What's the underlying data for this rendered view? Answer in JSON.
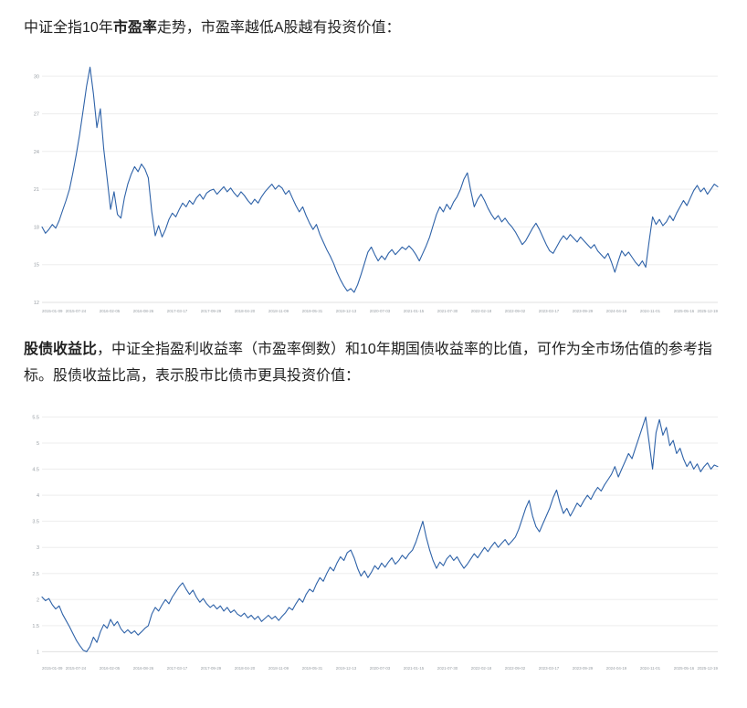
{
  "page": {
    "paragraph1": {
      "pre": "中证全指10年",
      "bold": "市盈率",
      "post": "走势，市盈率越低A股越有投资价值："
    },
    "paragraph2": {
      "bold": "股债收益比",
      "post": "，中证全指盈利收益率（市盈率倒数）和10年期国债收益率的比值，可作为全市场估值的参考指标。股债收益比高，表示股市比债市更具投资价值："
    }
  },
  "chart_data": [
    {
      "type": "line",
      "title": "",
      "series_name": "中证全指10年市盈率",
      "line_color": "#2e62a8",
      "grid": "horizontal",
      "legend_position": "none",
      "ylim": [
        12,
        31.4
      ],
      "yticks": [
        12,
        15,
        18,
        21,
        24,
        27,
        30
      ],
      "x_labels": [
        "2015-01-09",
        "2015-07-24",
        "2016-02-05",
        "2016-08-26",
        "2017-03-17",
        "2017-09-29",
        "2018-04-20",
        "2018-11-09",
        "2019-05-31",
        "2019-12-13",
        "2020-07-03",
        "2021-01-15",
        "2021-07-30",
        "2022-02-18",
        "2022-09-02",
        "2023-03-17",
        "2023-09-29",
        "2024-04-19",
        "2024-11-01",
        "2025-05-16",
        "2025-12-19"
      ],
      "values": [
        18.0,
        17.5,
        17.8,
        18.2,
        17.9,
        18.5,
        19.3,
        20.1,
        21.0,
        22.3,
        23.8,
        25.4,
        27.3,
        29.2,
        30.7,
        28.6,
        25.9,
        27.4,
        24.2,
        21.8,
        19.4,
        20.8,
        19.0,
        18.7,
        20.3,
        21.4,
        22.2,
        22.8,
        22.4,
        23.0,
        22.6,
        21.9,
        19.2,
        17.3,
        18.1,
        17.2,
        17.8,
        18.6,
        19.1,
        18.8,
        19.4,
        19.9,
        19.6,
        20.1,
        19.8,
        20.3,
        20.6,
        20.2,
        20.7,
        20.9,
        21.0,
        20.6,
        20.9,
        21.2,
        20.8,
        21.1,
        20.7,
        20.4,
        20.8,
        20.5,
        20.1,
        19.8,
        20.2,
        19.9,
        20.4,
        20.8,
        21.1,
        21.4,
        21.0,
        21.3,
        21.1,
        20.6,
        20.9,
        20.3,
        19.7,
        19.2,
        19.6,
        18.9,
        18.3,
        17.8,
        18.2,
        17.4,
        16.8,
        16.2,
        15.7,
        15.1,
        14.4,
        13.8,
        13.3,
        12.9,
        13.1,
        12.8,
        13.4,
        14.2,
        15.1,
        16.0,
        16.4,
        15.8,
        15.3,
        15.7,
        15.4,
        15.9,
        16.2,
        15.8,
        16.1,
        16.4,
        16.2,
        16.5,
        16.2,
        15.8,
        15.3,
        15.9,
        16.5,
        17.2,
        18.1,
        19.0,
        19.6,
        19.2,
        19.8,
        19.4,
        20.0,
        20.4,
        21.0,
        21.8,
        22.3,
        20.9,
        19.6,
        20.2,
        20.6,
        20.1,
        19.5,
        19.0,
        18.6,
        18.9,
        18.4,
        18.7,
        18.3,
        18.0,
        17.6,
        17.1,
        16.6,
        16.9,
        17.4,
        17.9,
        18.3,
        17.8,
        17.2,
        16.6,
        16.1,
        15.9,
        16.4,
        16.9,
        17.3,
        17.0,
        17.4,
        17.1,
        16.8,
        17.2,
        16.9,
        16.6,
        16.3,
        16.6,
        16.1,
        15.8,
        15.5,
        15.9,
        15.2,
        14.4,
        15.3,
        16.1,
        15.7,
        16.0,
        15.6,
        15.2,
        14.9,
        15.3,
        14.8,
        16.9,
        18.8,
        18.2,
        18.6,
        18.1,
        18.4,
        18.9,
        18.5,
        19.1,
        19.6,
        20.1,
        19.7,
        20.3,
        20.9,
        21.3,
        20.8,
        21.1,
        20.6,
        21.0,
        21.4,
        21.2
      ]
    },
    {
      "type": "line",
      "title": "",
      "series_name": "股债收益比",
      "line_color": "#2e62a8",
      "grid": "horizontal",
      "legend_position": "none",
      "ylim": [
        0.85,
        5.7
      ],
      "yticks": [
        1,
        1.5,
        2,
        2.5,
        3,
        3.5,
        4,
        4.5,
        5,
        5.5
      ],
      "x_labels": [
        "2015-01-09",
        "2015-07-24",
        "2016-02-05",
        "2016-08-26",
        "2017-03-17",
        "2017-09-29",
        "2018-04-20",
        "2018-11-09",
        "2019-05-31",
        "2019-12-13",
        "2020-07-03",
        "2021-01-15",
        "2021-07-30",
        "2022-02-18",
        "2022-09-02",
        "2023-03-17",
        "2023-09-29",
        "2024-04-19",
        "2024-11-01",
        "2025-05-16",
        "2025-12-19"
      ],
      "values": [
        2.05,
        1.98,
        2.02,
        1.9,
        1.82,
        1.88,
        1.72,
        1.6,
        1.48,
        1.35,
        1.22,
        1.12,
        1.03,
        1.0,
        1.1,
        1.28,
        1.18,
        1.38,
        1.52,
        1.45,
        1.62,
        1.5,
        1.58,
        1.44,
        1.36,
        1.42,
        1.35,
        1.4,
        1.32,
        1.38,
        1.45,
        1.5,
        1.72,
        1.85,
        1.78,
        1.9,
        2.0,
        1.92,
        2.05,
        2.15,
        2.25,
        2.32,
        2.2,
        2.1,
        2.18,
        2.05,
        1.95,
        2.02,
        1.92,
        1.85,
        1.9,
        1.82,
        1.88,
        1.78,
        1.85,
        1.75,
        1.8,
        1.72,
        1.68,
        1.74,
        1.65,
        1.7,
        1.62,
        1.68,
        1.58,
        1.64,
        1.7,
        1.63,
        1.68,
        1.6,
        1.68,
        1.75,
        1.85,
        1.8,
        1.92,
        2.02,
        1.95,
        2.1,
        2.2,
        2.15,
        2.3,
        2.42,
        2.35,
        2.5,
        2.62,
        2.55,
        2.7,
        2.82,
        2.75,
        2.9,
        2.95,
        2.8,
        2.6,
        2.45,
        2.55,
        2.42,
        2.52,
        2.65,
        2.58,
        2.7,
        2.62,
        2.72,
        2.8,
        2.68,
        2.75,
        2.85,
        2.78,
        2.88,
        2.95,
        3.1,
        3.3,
        3.5,
        3.2,
        2.95,
        2.75,
        2.6,
        2.72,
        2.65,
        2.78,
        2.85,
        2.75,
        2.82,
        2.7,
        2.6,
        2.68,
        2.78,
        2.88,
        2.8,
        2.9,
        3.0,
        2.92,
        3.02,
        3.1,
        3.0,
        3.08,
        3.15,
        3.05,
        3.12,
        3.2,
        3.35,
        3.55,
        3.75,
        3.9,
        3.6,
        3.4,
        3.3,
        3.45,
        3.6,
        3.75,
        3.95,
        4.1,
        3.85,
        3.65,
        3.75,
        3.6,
        3.72,
        3.85,
        3.78,
        3.9,
        4.0,
        3.92,
        4.05,
        4.15,
        4.08,
        4.2,
        4.3,
        4.4,
        4.55,
        4.35,
        4.5,
        4.65,
        4.8,
        4.7,
        4.9,
        5.1,
        5.3,
        5.5,
        5.0,
        4.5,
        5.2,
        5.45,
        5.15,
        5.3,
        4.95,
        5.05,
        4.8,
        4.9,
        4.7,
        4.55,
        4.65,
        4.5,
        4.6,
        4.45,
        4.55,
        4.62,
        4.5,
        4.58,
        4.55
      ]
    }
  ]
}
